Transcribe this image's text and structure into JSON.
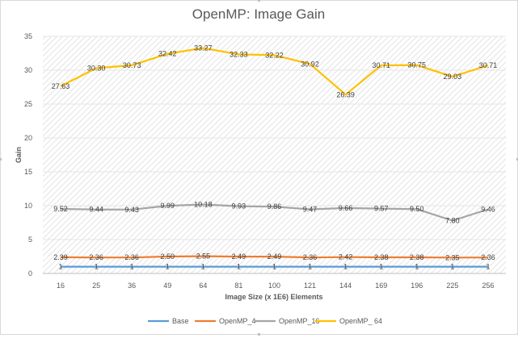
{
  "chart_data": {
    "type": "line",
    "title": "OpenMP: Image Gain",
    "xlabel": "Image Size (x 1E6) Elements",
    "ylabel": "Gain",
    "ylim": [
      0,
      35
    ],
    "yticks": [
      0,
      5,
      10,
      15,
      20,
      25,
      30,
      35
    ],
    "grid": "hatched",
    "legend": "bottom",
    "categories": [
      "16",
      "25",
      "36",
      "49",
      "64",
      "81",
      "100",
      "121",
      "144",
      "169",
      "196",
      "225",
      "256"
    ],
    "series": [
      {
        "name": "Base",
        "color": "#5b9bd5",
        "values": [
          1,
          1,
          1,
          1,
          1,
          1,
          1,
          1,
          1,
          1,
          1,
          1,
          1
        ],
        "labels": [
          "1",
          "1",
          "1",
          "1",
          "1",
          "1",
          "1",
          "1",
          "1",
          "1",
          "1",
          "1",
          "1"
        ]
      },
      {
        "name": "OpenMP_4",
        "color": "#ed7d31",
        "values": [
          2.39,
          2.36,
          2.36,
          2.5,
          2.55,
          2.49,
          2.49,
          2.36,
          2.42,
          2.38,
          2.38,
          2.35,
          2.36
        ],
        "labels": [
          "2.39",
          "2.36",
          "2.36",
          "2.50",
          "2.55",
          "2.49",
          "2.49",
          "2.36",
          "2.42",
          "2.38",
          "2.38",
          "2.35",
          "2.36"
        ]
      },
      {
        "name": "OpenMP_16",
        "color": "#a5a5a5",
        "values": [
          9.52,
          9.44,
          9.43,
          9.99,
          10.18,
          9.93,
          9.86,
          9.47,
          9.66,
          9.57,
          9.5,
          7.8,
          9.46
        ],
        "labels": [
          "9.52",
          "9.44",
          "9.43",
          "9.99",
          "10.18",
          "9.93",
          "9.86",
          "9.47",
          "9.66",
          "9.57",
          "9.50",
          "7.80",
          "9.46"
        ]
      },
      {
        "name": "OpenMP_ 64",
        "color": "#ffc000",
        "values": [
          27.63,
          30.3,
          30.73,
          32.42,
          33.27,
          32.33,
          32.22,
          30.92,
          26.39,
          30.71,
          30.75,
          29.03,
          30.71
        ],
        "labels": [
          "27.63",
          "30.30",
          "30.73",
          "32.42",
          "33.27",
          "32.33",
          "32.22",
          "30.92",
          "26.39",
          "30.71",
          "30.75",
          "29.03",
          "30.71"
        ]
      }
    ]
  }
}
